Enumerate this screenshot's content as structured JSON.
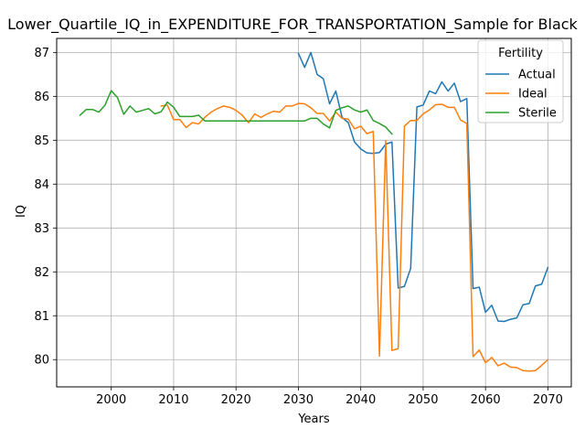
{
  "chart_data": {
    "type": "line",
    "title": "Lower_Quartile_IQ_in_EXPENDITURE_FOR_TRANSPORTATION_Sample for Black",
    "xlabel": "Years",
    "ylabel": "IQ",
    "xlim": [
      1991.25,
      2073.75
    ],
    "ylim": [
      79.38,
      87.32
    ],
    "xticks": [
      2000,
      2010,
      2020,
      2030,
      2040,
      2050,
      2060,
      2070
    ],
    "yticks": [
      80,
      81,
      82,
      83,
      84,
      85,
      86,
      87
    ],
    "grid": true,
    "legend": {
      "title": "Fertility",
      "placement": "upper right"
    },
    "series": [
      {
        "name": "Actual",
        "color": "#1f77b4",
        "x": [
          2030,
          2031,
          2032,
          2033,
          2034,
          2035,
          2036,
          2037,
          2038,
          2039,
          2040,
          2041,
          2042,
          2043,
          2044,
          2045,
          2046,
          2047,
          2048,
          2049,
          2050,
          2051,
          2052,
          2053,
          2054,
          2055,
          2056,
          2057,
          2058,
          2059,
          2060,
          2061,
          2062,
          2063,
          2064,
          2065,
          2066,
          2067,
          2068,
          2069,
          2070
        ],
        "values": [
          86.98,
          86.66,
          87.0,
          86.5,
          86.4,
          85.83,
          86.12,
          85.52,
          85.4,
          84.96,
          84.8,
          84.71,
          84.7,
          84.72,
          84.91,
          84.96,
          81.63,
          81.67,
          82.08,
          85.76,
          85.8,
          86.12,
          86.06,
          86.33,
          86.12,
          86.3,
          85.88,
          85.95,
          81.62,
          81.65,
          81.08,
          81.24,
          80.88,
          80.87,
          80.92,
          80.95,
          81.25,
          81.28,
          81.68,
          81.72,
          82.1
        ]
      },
      {
        "name": "Ideal",
        "color": "#ff7f0e",
        "x": [
          2008,
          2009,
          2010,
          2011,
          2012,
          2013,
          2014,
          2015,
          2016,
          2017,
          2018,
          2019,
          2020,
          2021,
          2022,
          2023,
          2024,
          2025,
          2026,
          2027,
          2028,
          2029,
          2030,
          2031,
          2032,
          2033,
          2034,
          2035,
          2036,
          2037,
          2038,
          2039,
          2040,
          2041,
          2042,
          2043,
          2044,
          2045,
          2046,
          2047,
          2048,
          2049,
          2050,
          2051,
          2052,
          2053,
          2054,
          2055,
          2056,
          2057,
          2058,
          2059,
          2060,
          2061,
          2062,
          2063,
          2064,
          2065,
          2066,
          2067,
          2068,
          2069,
          2070
        ],
        "values": [
          85.78,
          85.8,
          85.47,
          85.47,
          85.29,
          85.4,
          85.37,
          85.52,
          85.64,
          85.72,
          85.78,
          85.75,
          85.68,
          85.57,
          85.4,
          85.6,
          85.52,
          85.6,
          85.66,
          85.64,
          85.78,
          85.78,
          85.84,
          85.83,
          85.74,
          85.61,
          85.61,
          85.44,
          85.64,
          85.5,
          85.48,
          85.26,
          85.32,
          85.15,
          85.2,
          80.08,
          84.99,
          80.21,
          80.25,
          85.32,
          85.45,
          85.45,
          85.6,
          85.69,
          85.81,
          85.82,
          85.75,
          85.75,
          85.46,
          85.38,
          80.07,
          80.22,
          79.93,
          80.05,
          79.86,
          79.92,
          79.83,
          79.82,
          79.75,
          79.74,
          79.75,
          79.87,
          80.0
        ]
      },
      {
        "name": "Sterile",
        "color": "#2ca02c",
        "x": [
          1995,
          1996,
          1997,
          1998,
          1999,
          2000,
          2001,
          2002,
          2003,
          2004,
          2005,
          2006,
          2007,
          2008,
          2009,
          2010,
          2011,
          2012,
          2013,
          2014,
          2015,
          2016,
          2017,
          2018,
          2019,
          2020,
          2021,
          2022,
          2023,
          2024,
          2025,
          2026,
          2027,
          2028,
          2029,
          2030,
          2031,
          2032,
          2033,
          2034,
          2035,
          2036,
          2037,
          2038,
          2039,
          2040,
          2041,
          2042,
          2043,
          2044,
          2045
        ],
        "values": [
          85.57,
          85.7,
          85.7,
          85.64,
          85.8,
          86.13,
          85.97,
          85.59,
          85.78,
          85.64,
          85.68,
          85.72,
          85.6,
          85.65,
          85.87,
          85.75,
          85.54,
          85.54,
          85.54,
          85.57,
          85.44,
          85.44,
          85.44,
          85.44,
          85.44,
          85.44,
          85.44,
          85.44,
          85.44,
          85.44,
          85.44,
          85.44,
          85.44,
          85.44,
          85.44,
          85.44,
          85.44,
          85.5,
          85.5,
          85.37,
          85.28,
          85.68,
          85.74,
          85.78,
          85.69,
          85.64,
          85.69,
          85.45,
          85.38,
          85.3,
          85.14
        ]
      }
    ]
  }
}
